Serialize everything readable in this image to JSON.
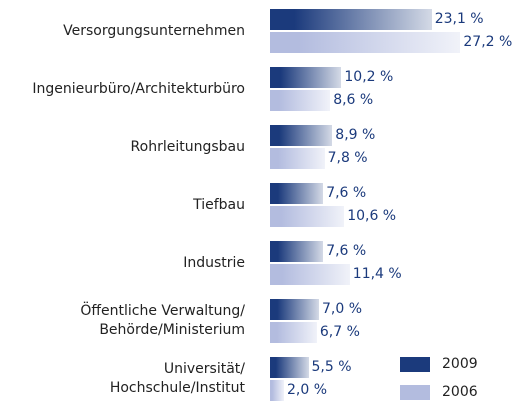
{
  "chart_data": {
    "type": "bar",
    "orientation": "horizontal",
    "categories": [
      "Versorgungsunternehmen",
      "Ingenieurbüro/Architekturbüro",
      "Rohrleitungsbau",
      "Tiefbau",
      "Industrie",
      "Öffentliche Verwaltung/\nBehörde/Ministerium",
      "Universität/\nHochschule/Institut"
    ],
    "series": [
      {
        "name": "2009",
        "color": "#1b3a7c",
        "values": [
          23.1,
          10.2,
          8.9,
          7.6,
          7.6,
          7.0,
          5.5
        ],
        "value_labels": [
          "23,1 %",
          "10,2 %",
          "8,9 %",
          "7,6 %",
          "7,6 %",
          "7,0 %",
          "5,5 %"
        ]
      },
      {
        "name": "2006",
        "color": "#b3bcdf",
        "values": [
          27.2,
          8.6,
          7.8,
          10.6,
          11.4,
          6.7,
          2.0
        ],
        "value_labels": [
          "27,2 %",
          "8,6 %",
          "7,8 %",
          "10,6 %",
          "11,4 %",
          "6,7 %",
          "2,0 %"
        ]
      }
    ],
    "legend": "bottom-right"
  }
}
